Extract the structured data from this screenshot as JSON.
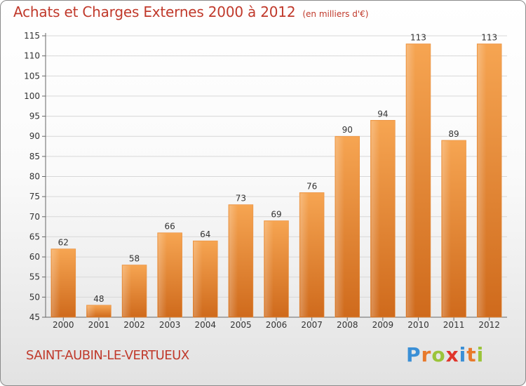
{
  "header": {
    "title": "Achats et Charges Externes 2000 à 2012",
    "subtitle": "(en milliers d'€)"
  },
  "footer": {
    "commune": "SAINT-AUBIN-LE-VERTUEUX",
    "logo_text": "Proxiti",
    "logo_letters": [
      "P",
      "r",
      "o",
      "x",
      "i",
      "t",
      "i"
    ],
    "logo_colors": [
      "#3a8fd6",
      "#e8792b",
      "#9bc43a",
      "#e0352b",
      "#3a8fd6",
      "#e8792b",
      "#9bc43a"
    ]
  },
  "colors": {
    "title": "#c0392b",
    "bar_light": "#f6a552",
    "bar_dark": "#cf6a1c"
  },
  "chart_data": {
    "type": "bar",
    "categories": [
      "2000",
      "2001",
      "2002",
      "2003",
      "2004",
      "2005",
      "2006",
      "2007",
      "2008",
      "2009",
      "2010",
      "2011",
      "2012"
    ],
    "values": [
      62,
      48,
      58,
      66,
      64,
      73,
      69,
      76,
      90,
      94,
      113,
      89,
      113
    ],
    "ylim": [
      45,
      115
    ],
    "yticks": [
      45,
      50,
      55,
      60,
      65,
      70,
      75,
      80,
      85,
      90,
      95,
      100,
      105,
      110,
      115
    ],
    "grid": true
  }
}
